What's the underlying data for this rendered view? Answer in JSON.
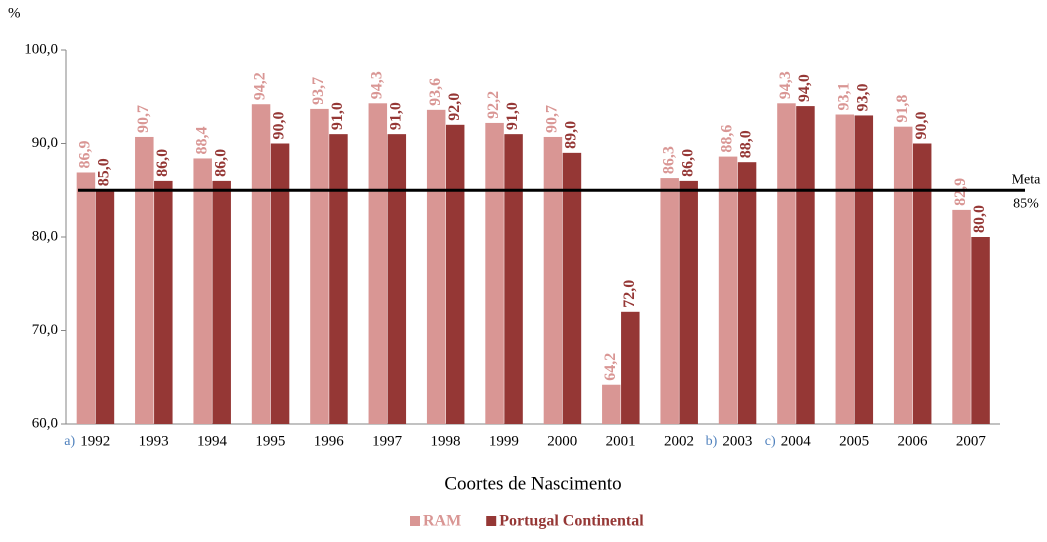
{
  "chart_data": {
    "type": "bar",
    "y_unit_label": "%",
    "x_axis_title": "Coortes de Nascimento",
    "categories": [
      "1992",
      "1993",
      "1994",
      "1995",
      "1996",
      "1997",
      "1998",
      "1999",
      "2000",
      "2001",
      "2002",
      "2003",
      "2004",
      "2005",
      "2006",
      "2007"
    ],
    "series": [
      {
        "name": "RAM",
        "color": "#d99694",
        "values": [
          86.9,
          90.7,
          88.4,
          94.2,
          93.7,
          94.3,
          93.6,
          92.2,
          90.7,
          64.2,
          86.3,
          88.6,
          94.3,
          93.1,
          91.8,
          82.9
        ],
        "value_labels": [
          "86,9",
          "90,7",
          "88,4",
          "94,2",
          "93,7",
          "94,3",
          "93,6",
          "92,2",
          "90,7",
          "64,2",
          "86,3",
          "88,6",
          "94,3",
          "93,1",
          "91,8",
          "82,9"
        ]
      },
      {
        "name": "Portugal Continental",
        "color": "#953735",
        "values": [
          85.0,
          86.0,
          86.0,
          90.0,
          91.0,
          91.0,
          92.0,
          91.0,
          89.0,
          72.0,
          86.0,
          88.0,
          94.0,
          93.0,
          90.0,
          80.0
        ],
        "value_labels": [
          "85,0",
          "86,0",
          "86,0",
          "90,0",
          "91,0",
          "91,0",
          "92,0",
          "91,0",
          "89,0",
          "72,0",
          "86,0",
          "88,0",
          "94,0",
          "93,0",
          "90,0",
          "80,0"
        ]
      }
    ],
    "ylim": [
      60,
      100
    ],
    "yticks": [
      {
        "value": 60,
        "label": "60,0"
      },
      {
        "value": 70,
        "label": "70,0"
      },
      {
        "value": 80,
        "label": "80,0"
      },
      {
        "value": 90,
        "label": "90,0"
      },
      {
        "value": 100,
        "label": "100,0"
      }
    ],
    "reference_line": {
      "value": 85,
      "label": [
        "Meta",
        "85%"
      ],
      "color": "#000000"
    },
    "annotations": [
      {
        "text": "a)",
        "category": "1992",
        "color": "#4f81bd"
      },
      {
        "text": "b)",
        "category": "2003",
        "color": "#4f81bd"
      },
      {
        "text": "c)",
        "category": "2004",
        "color": "#4f81bd"
      }
    ],
    "legend": "bottom"
  }
}
